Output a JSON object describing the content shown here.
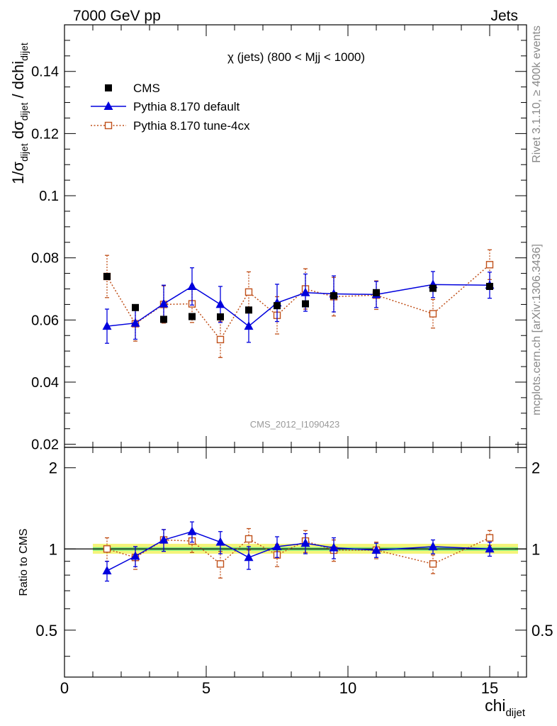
{
  "header": {
    "left": "7000 GeV pp",
    "right": "Jets"
  },
  "side_labels": {
    "rivet": "Rivet 3.1.10, ≥ 400k events",
    "mcplots": "mcplots.cern.ch [arXiv:1306.3436]"
  },
  "colors": {
    "cms": "#000000",
    "default": "#0000dd",
    "tune": "#c0501a",
    "band_inner": "#7ce87c",
    "band_outer": "#f4f47a"
  },
  "chart_data": [
    {
      "type": "scatter",
      "title": "χ (jets) (800 < Mjj < 1000)",
      "ylabel": "1/σdijet dσdijet / dchidijet",
      "xlabel": "",
      "watermark": "CMS_2012_I1090423",
      "xlim": [
        0,
        16.3
      ],
      "ylim": [
        0.019,
        0.155
      ],
      "yticks": [
        0.02,
        0.04,
        0.06,
        0.08,
        0.1,
        0.12,
        0.14
      ],
      "xticks": [
        0,
        5,
        10,
        15
      ],
      "legend_position": "top-left",
      "series": [
        {
          "name": "CMS",
          "marker": "filled-square",
          "x": [
            1.5,
            2.5,
            3.5,
            4.5,
            5.5,
            6.5,
            7.5,
            8.5,
            9.5,
            11.0,
            13.0,
            15.0
          ],
          "y": [
            0.074,
            0.064,
            0.0602,
            0.0611,
            0.061,
            0.0632,
            0.0646,
            0.0652,
            0.0678,
            0.0688,
            0.0702,
            0.0708
          ],
          "yerr": [
            0.0008,
            0.0008,
            0.0008,
            0.0008,
            0.0008,
            0.0008,
            0.0008,
            0.0008,
            0.0008,
            0.0008,
            0.0008,
            0.0008
          ]
        },
        {
          "name": "Pythia 8.170 default",
          "marker": "triangle",
          "line": "solid",
          "x": [
            1.5,
            2.5,
            3.5,
            4.5,
            5.5,
            6.5,
            7.5,
            8.5,
            9.5,
            11.0,
            13.0,
            15.0
          ],
          "y": [
            0.058,
            0.059,
            0.0652,
            0.0708,
            0.065,
            0.058,
            0.0655,
            0.0688,
            0.0684,
            0.0682,
            0.0714,
            0.0712
          ],
          "yerr": [
            0.0055,
            0.0052,
            0.006,
            0.006,
            0.0058,
            0.0052,
            0.006,
            0.006,
            0.0058,
            0.0042,
            0.0042,
            0.0042
          ]
        },
        {
          "name": "Pythia 8.170 tune-4cx",
          "marker": "open-square",
          "line": "dotted",
          "x": [
            1.5,
            2.5,
            3.5,
            4.5,
            5.5,
            6.5,
            7.5,
            8.5,
            9.5,
            11.0,
            13.0,
            15.0
          ],
          "y": [
            0.074,
            0.0588,
            0.065,
            0.0652,
            0.0537,
            0.069,
            0.0615,
            0.07,
            0.0675,
            0.068,
            0.062,
            0.0778
          ],
          "yerr": [
            0.0068,
            0.0056,
            0.006,
            0.006,
            0.0058,
            0.0065,
            0.006,
            0.0065,
            0.0062,
            0.0046,
            0.0046,
            0.0048
          ]
        }
      ]
    },
    {
      "type": "scatter",
      "ylabel": "Ratio to CMS",
      "xlabel": "chidijet",
      "xlim": [
        0,
        16.3
      ],
      "ylim": [
        0.335,
        2.38
      ],
      "yscale": "log",
      "yticks": [
        0.5,
        1,
        2
      ],
      "xticks": [
        0,
        5,
        10,
        15
      ],
      "reference_band": {
        "x": [
          1.0,
          16.0
        ],
        "inner": [
          0.985,
          1.015
        ],
        "outer": [
          0.96,
          1.045
        ]
      },
      "series": [
        {
          "name": "Pythia 8.170 default",
          "marker": "triangle",
          "line": "solid",
          "x": [
            1.5,
            2.5,
            3.5,
            4.5,
            5.5,
            6.5,
            7.5,
            8.5,
            9.5,
            11.0,
            13.0,
            15.0
          ],
          "y": [
            0.83,
            0.94,
            1.08,
            1.16,
            1.06,
            0.93,
            1.02,
            1.05,
            1.01,
            0.99,
            1.02,
            1.0
          ],
          "yerr": [
            0.07,
            0.08,
            0.1,
            0.1,
            0.1,
            0.09,
            0.09,
            0.09,
            0.09,
            0.06,
            0.06,
            0.06
          ]
        },
        {
          "name": "Pythia 8.170 tune-4cx",
          "marker": "open-square",
          "line": "dotted",
          "x": [
            1.5,
            2.5,
            3.5,
            4.5,
            5.5,
            6.5,
            7.5,
            8.5,
            9.5,
            11.0,
            13.0,
            15.0
          ],
          "y": [
            1.0,
            0.93,
            1.08,
            1.07,
            0.88,
            1.09,
            0.95,
            1.07,
            0.99,
            0.99,
            0.88,
            1.1
          ],
          "yerr": [
            0.1,
            0.09,
            0.1,
            0.1,
            0.1,
            0.1,
            0.09,
            0.1,
            0.09,
            0.07,
            0.07,
            0.07
          ]
        }
      ]
    }
  ]
}
